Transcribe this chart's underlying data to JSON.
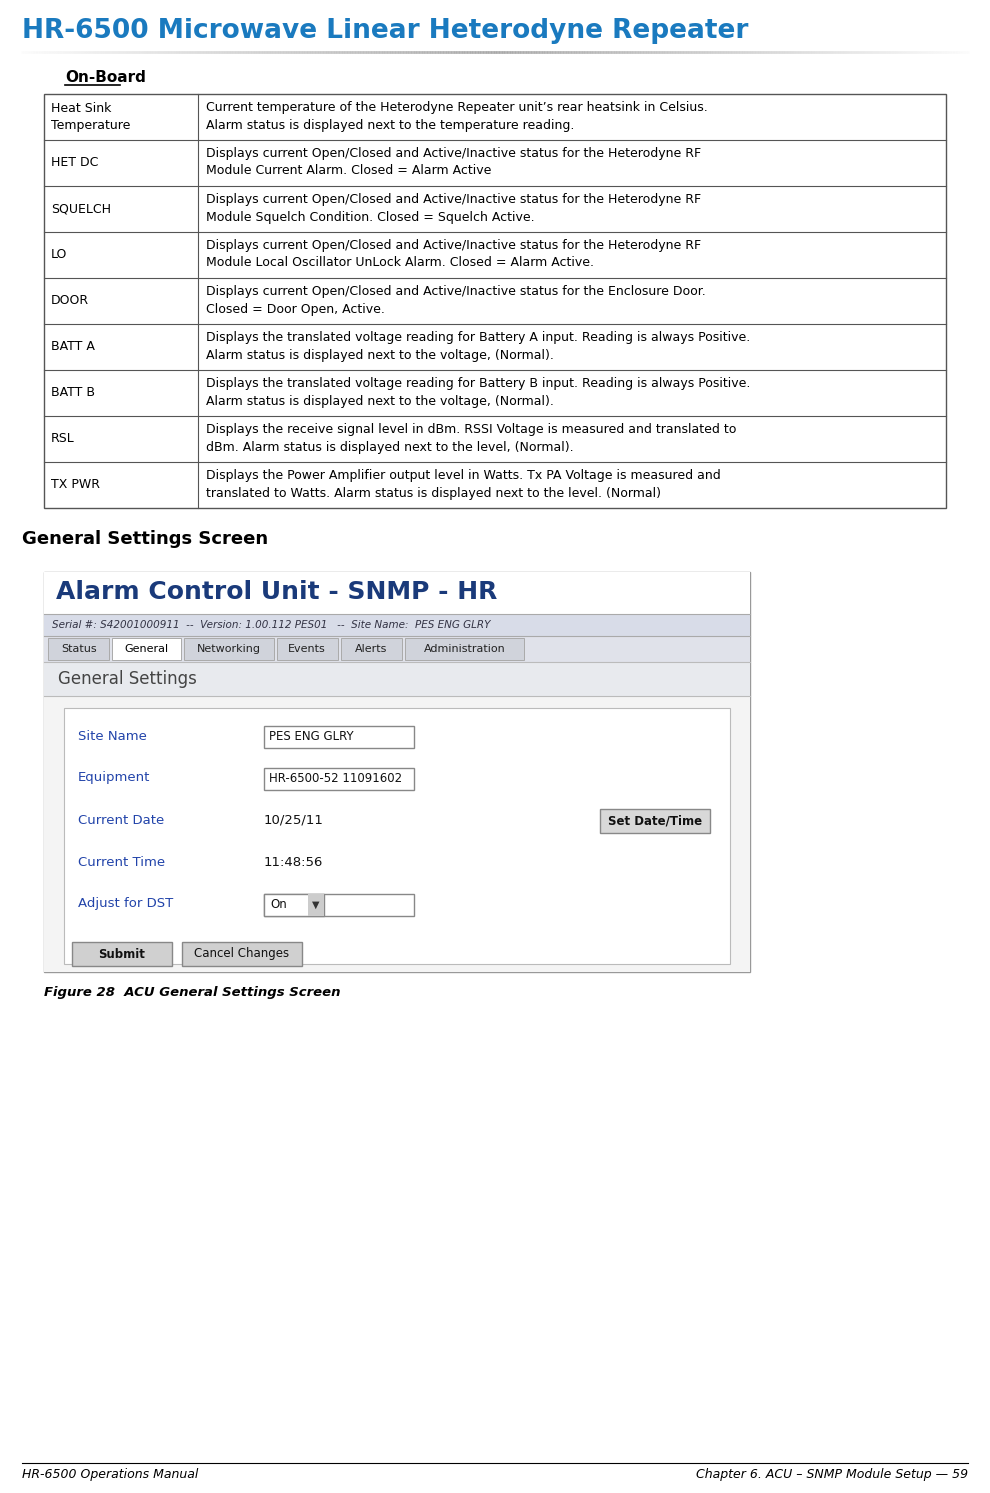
{
  "title": "HR-6500 Microwave Linear Heterodyne Repeater",
  "title_color": "#1a7abf",
  "section_label": "On-Board",
  "table_rows": [
    {
      "label": "Heat Sink\nTemperature",
      "description": "Current temperature of the Heterodyne Repeater unit’s rear heatsink in Celsius.\nAlarm status is displayed next to the temperature reading."
    },
    {
      "label": "HET DC",
      "description": "Displays current Open/Closed and Active/Inactive status for the Heterodyne RF\nModule Current Alarm. Closed = Alarm Active"
    },
    {
      "label": "SQUELCH",
      "description": "Displays current Open/Closed and Active/Inactive status for the Heterodyne RF\nModule Squelch Condition. Closed = Squelch Active."
    },
    {
      "label": "LO",
      "description": "Displays current Open/Closed and Active/Inactive status for the Heterodyne RF\nModule Local Oscillator UnLock Alarm. Closed = Alarm Active."
    },
    {
      "label": "DOOR",
      "description": "Displays current Open/Closed and Active/Inactive status for the Enclosure Door.\nClosed = Door Open, Active."
    },
    {
      "label": "BATT A",
      "description": "Displays the translated voltage reading for Battery A input. Reading is always Positive.\nAlarm status is displayed next to the voltage, (Normal)."
    },
    {
      "label": "BATT B",
      "description": "Displays the translated voltage reading for Battery B input. Reading is always Positive.\nAlarm status is displayed next to the voltage, (Normal)."
    },
    {
      "label": "RSL",
      "description": "Displays the receive signal level in dBm. RSSI Voltage is measured and translated to\ndBm. Alarm status is displayed next to the level, (Normal)."
    },
    {
      "label": "TX PWR",
      "description": "Displays the Power Amplifier output level in Watts. Tx PA Voltage is measured and\ntranslated to Watts. Alarm status is displayed next to the level. (Normal)"
    }
  ],
  "general_settings_title": "General Settings Screen",
  "figure_caption": "Figure 28  ACU General Settings Screen",
  "footer_left": "HR-6500 Operations Manual",
  "footer_right": "Chapter 6. ACU – SNMP Module Setup — 59",
  "bg_color": "#ffffff",
  "table_border_color": "#555555",
  "label_font_size": 9.0,
  "desc_font_size": 9.0,
  "screenshot_title": "Alarm Control Unit - SNMP - HR",
  "screenshot_title_color": "#1a3a7a",
  "screenshot_serial": "Serial #: S42001000911  --  Version: 1.00.112 PES01   --  Site Name:  PES ENG GLRY",
  "screenshot_tabs": [
    "Status",
    "General",
    "Networking",
    "Events",
    "Alerts",
    "Administration"
  ],
  "screenshot_active_tab": "General",
  "screenshot_section": "General Settings",
  "screenshot_fields": [
    {
      "label": "Site Name",
      "value": "PES ENG GLRY",
      "has_box": true
    },
    {
      "label": "Equipment",
      "value": "HR-6500-52 11091602",
      "has_box": true
    },
    {
      "label": "Current Date",
      "value": "10/25/11",
      "has_box": false,
      "button": "Set Date/Time"
    },
    {
      "label": "Current Time",
      "value": "11:48:56",
      "has_box": false
    },
    {
      "label": "Adjust for DST",
      "value": "On",
      "has_box": true,
      "dropdown": true
    }
  ],
  "screenshot_buttons": [
    "Submit",
    "Cancel Changes"
  ]
}
